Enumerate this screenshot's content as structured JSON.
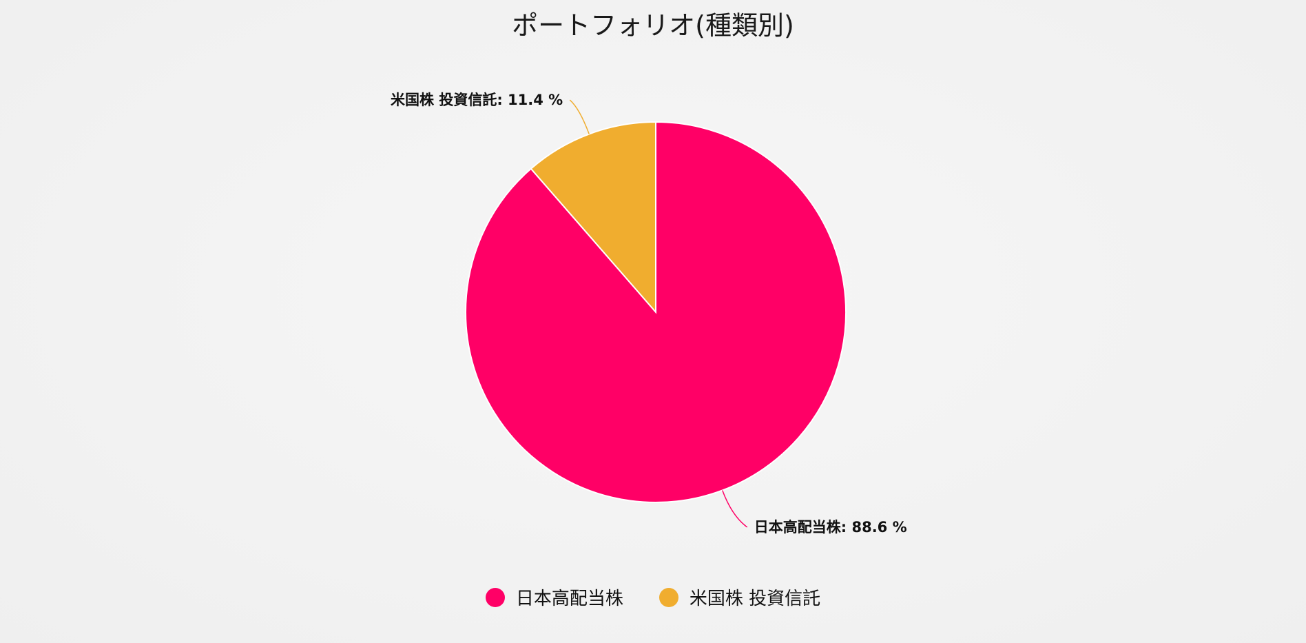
{
  "chart_data": {
    "type": "pie",
    "title": "ポートフォリオ(種類別)",
    "slices": [
      {
        "name": "米国株 投資信託",
        "value": 11.4,
        "label": "米国株 投資信託: 11.4 %",
        "color": "#f0ad2f"
      },
      {
        "name": "日本高配当株",
        "value": 88.6,
        "label": "日本高配当株: 88.6 %",
        "color": "#ff0066"
      }
    ],
    "legend": {
      "placement": "bottom",
      "entries": [
        {
          "name": "日本高配当株",
          "color": "#ff0066"
        },
        {
          "name": "米国株 投資信託",
          "color": "#f0ad2f"
        }
      ]
    }
  }
}
